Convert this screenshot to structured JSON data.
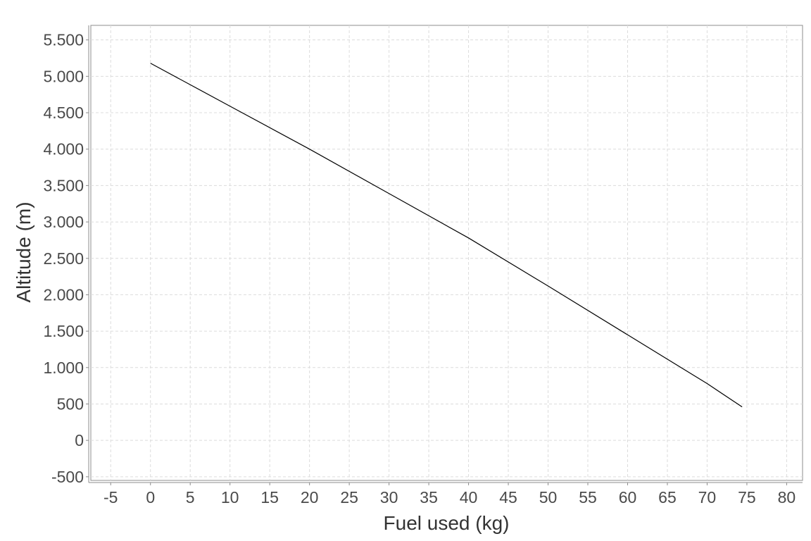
{
  "chart_data": {
    "type": "line",
    "xlabel": "Fuel used (kg)",
    "ylabel": "Altitude (m)",
    "xlim": [
      -7.5,
      82
    ],
    "ylim": [
      -550,
      5700
    ],
    "x_ticks": [
      -5,
      0,
      5,
      10,
      15,
      20,
      25,
      30,
      35,
      40,
      45,
      50,
      55,
      60,
      65,
      70,
      75,
      80
    ],
    "x_tick_labels": [
      "-5",
      "0",
      "5",
      "10",
      "15",
      "20",
      "25",
      "30",
      "35",
      "40",
      "45",
      "50",
      "55",
      "60",
      "65",
      "70",
      "75",
      "80"
    ],
    "y_ticks": [
      -500,
      0,
      500,
      1000,
      1500,
      2000,
      2500,
      3000,
      3500,
      4000,
      4500,
      5000,
      5500
    ],
    "y_tick_labels": [
      "-500",
      "0",
      "500",
      "1.000",
      "1.500",
      "2.000",
      "2.500",
      "3.000",
      "3.500",
      "4.000",
      "4.500",
      "5.000",
      "5.500"
    ],
    "grid": true,
    "legend": "none",
    "series": [
      {
        "color": "#000000",
        "x": [
          0,
          10,
          20,
          30,
          40,
          50,
          60,
          70,
          74.4
        ],
        "y": [
          5180,
          4590,
          4000,
          3390,
          2780,
          2120,
          1450,
          780,
          460
        ]
      }
    ]
  }
}
